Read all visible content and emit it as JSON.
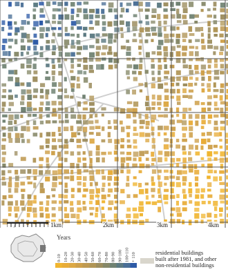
{
  "map": {
    "scale_labels": [
      "1km",
      "2km",
      "3km",
      "4km"
    ],
    "legend": {
      "title": "Years",
      "classes": [
        "0-10",
        "10-20",
        "20-30",
        "30-40",
        "40-50",
        "50-60",
        "60-70",
        "70-80",
        "80-90",
        "90-100",
        "100-110",
        "+ 110"
      ],
      "colors": [
        "#f0b530",
        "#e8ac38",
        "#dca844",
        "#cea04a",
        "#bf9a52",
        "#b09556",
        "#9c8d5e",
        "#868868",
        "#708272",
        "#5c7a82",
        "#4a6f96",
        "#2d5aa6"
      ],
      "note_lines": [
        "residential buildings",
        "built after 1981, and other",
        "non-residential buildings"
      ],
      "note_color": "#d9d6cc"
    },
    "grid_color": "#555555",
    "street_color": "#cfcfcf"
  }
}
